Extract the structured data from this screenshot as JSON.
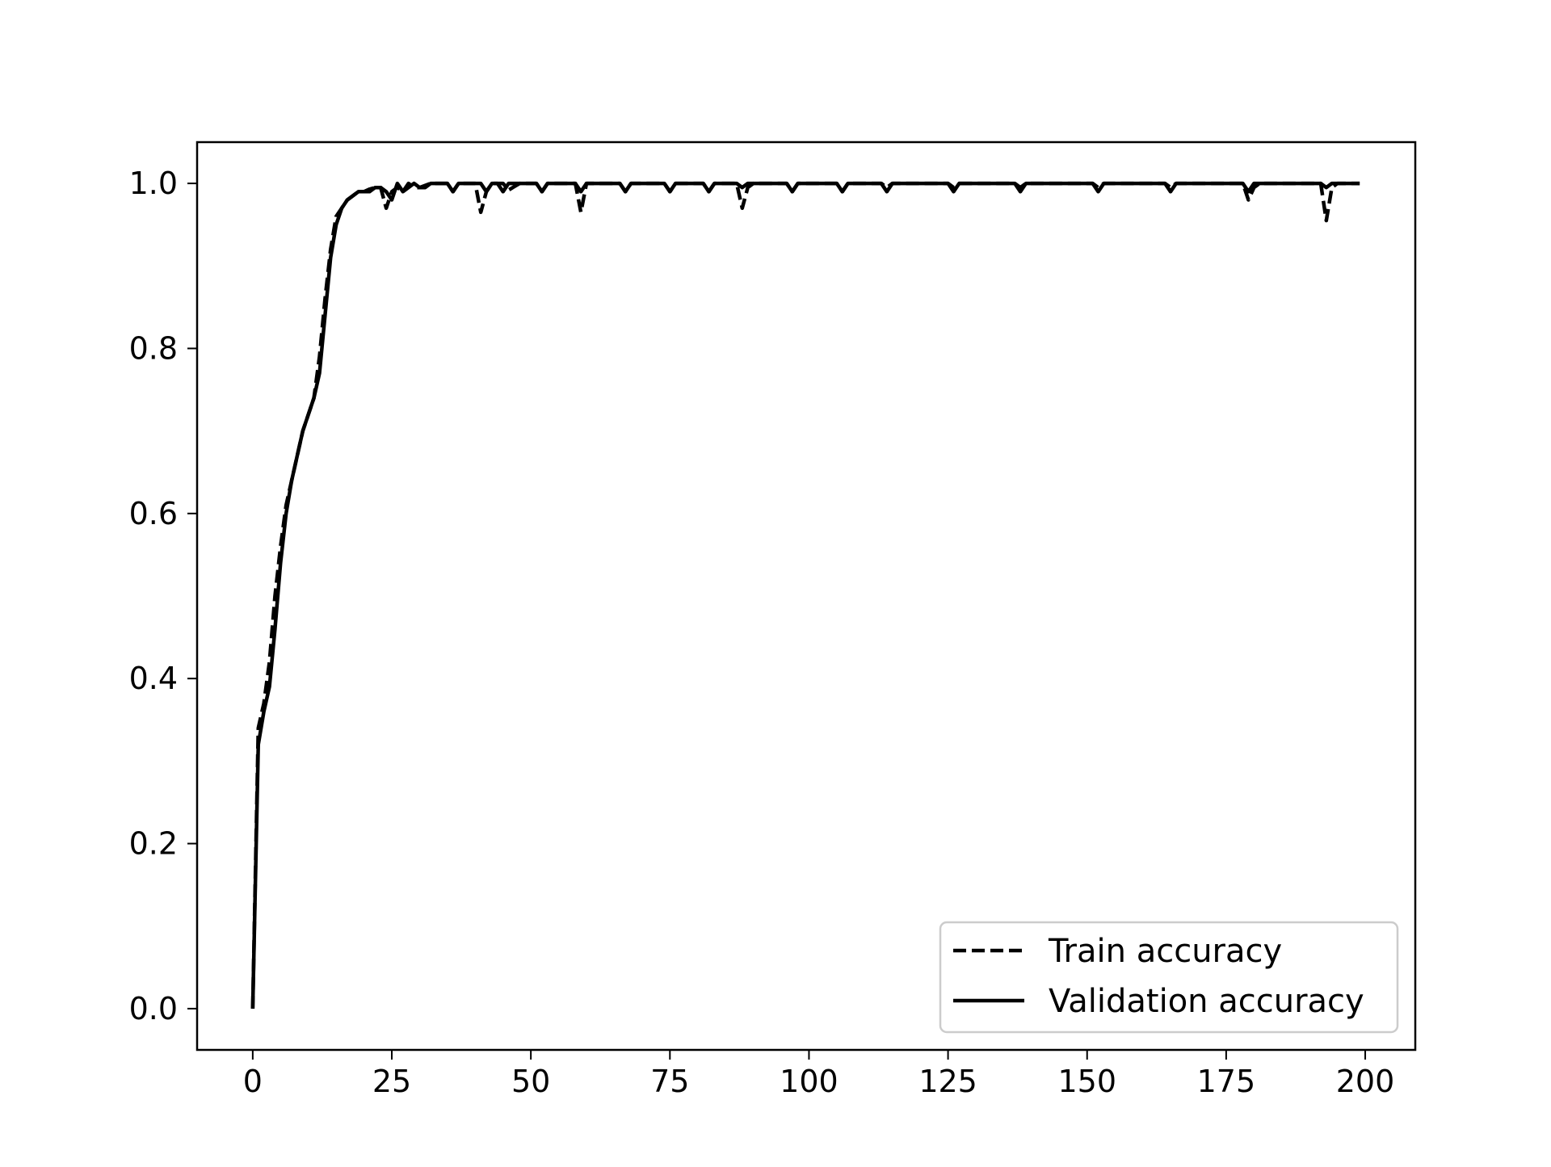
{
  "chart_data": {
    "type": "line",
    "title": "",
    "xlabel": "",
    "ylabel": "",
    "xlim": [
      -10,
      209
    ],
    "ylim": [
      -0.05,
      1.05
    ],
    "x_ticks": [
      0,
      25,
      50,
      75,
      100,
      125,
      150,
      175,
      200
    ],
    "x_tick_labels": [
      "0",
      "25",
      "50",
      "75",
      "100",
      "125",
      "150",
      "175",
      "200"
    ],
    "y_ticks": [
      0.0,
      0.2,
      0.4,
      0.6,
      0.8,
      1.0
    ],
    "y_tick_labels": [
      "0.0",
      "0.2",
      "0.4",
      "0.6",
      "0.8",
      "1.0"
    ],
    "grid": false,
    "legend_position": "lower-right",
    "series": [
      {
        "name": "Train accuracy",
        "style": "dashed",
        "color": "#000000",
        "points": [
          [
            0,
            0.0
          ],
          [
            1,
            0.34
          ],
          [
            2,
            0.37
          ],
          [
            3,
            0.42
          ],
          [
            4,
            0.5
          ],
          [
            5,
            0.56
          ],
          [
            6,
            0.61
          ],
          [
            7,
            0.64
          ],
          [
            8,
            0.67
          ],
          [
            9,
            0.7
          ],
          [
            10,
            0.72
          ],
          [
            11,
            0.74
          ],
          [
            12,
            0.79
          ],
          [
            13,
            0.86
          ],
          [
            14,
            0.92
          ],
          [
            15,
            0.96
          ],
          [
            16,
            0.97
          ],
          [
            17,
            0.98
          ],
          [
            18,
            0.985
          ],
          [
            19,
            0.99
          ],
          [
            20,
            0.99
          ],
          [
            21,
            0.993
          ],
          [
            22,
            0.995
          ],
          [
            23,
            0.995
          ],
          [
            24,
            0.97
          ],
          [
            25,
            0.99
          ],
          [
            26,
            0.995
          ],
          [
            27,
            0.99
          ],
          [
            28,
            1.0
          ],
          [
            29,
            0.995
          ],
          [
            30,
            0.995
          ],
          [
            32,
            1.0
          ],
          [
            35,
            1.0
          ],
          [
            36,
            0.99
          ],
          [
            37,
            1.0
          ],
          [
            40,
            1.0
          ],
          [
            41,
            0.965
          ],
          [
            42,
            0.99
          ],
          [
            43,
            1.0
          ],
          [
            45,
            1.0
          ],
          [
            46,
            0.992
          ],
          [
            48,
            1.0
          ],
          [
            51,
            1.0
          ],
          [
            52,
            0.99
          ],
          [
            53,
            1.0
          ],
          [
            58,
            1.0
          ],
          [
            59,
            0.965
          ],
          [
            60,
            1.0
          ],
          [
            66,
            1.0
          ],
          [
            67,
            0.99
          ],
          [
            68,
            1.0
          ],
          [
            74,
            1.0
          ],
          [
            75,
            0.99
          ],
          [
            76,
            1.0
          ],
          [
            81,
            1.0
          ],
          [
            82,
            0.99
          ],
          [
            83,
            1.0
          ],
          [
            87,
            1.0
          ],
          [
            88,
            0.97
          ],
          [
            89,
            0.995
          ],
          [
            90,
            1.0
          ],
          [
            96,
            1.0
          ],
          [
            97,
            0.99
          ],
          [
            98,
            1.0
          ],
          [
            105,
            1.0
          ],
          [
            106,
            0.99
          ],
          [
            107,
            1.0
          ],
          [
            113,
            1.0
          ],
          [
            114,
            0.995
          ],
          [
            115,
            1.0
          ],
          [
            125,
            1.0
          ],
          [
            126,
            0.995
          ],
          [
            127,
            1.0
          ],
          [
            137,
            1.0
          ],
          [
            138,
            0.995
          ],
          [
            139,
            1.0
          ],
          [
            151,
            1.0
          ],
          [
            152,
            0.995
          ],
          [
            153,
            1.0
          ],
          [
            164,
            1.0
          ],
          [
            165,
            0.995
          ],
          [
            166,
            1.0
          ],
          [
            178,
            1.0
          ],
          [
            179,
            0.98
          ],
          [
            180,
            0.995
          ],
          [
            181,
            1.0
          ],
          [
            192,
            1.0
          ],
          [
            193,
            0.955
          ],
          [
            194,
            0.995
          ],
          [
            195,
            1.0
          ],
          [
            199,
            1.0
          ]
        ]
      },
      {
        "name": "Validation accuracy",
        "style": "solid",
        "color": "#000000",
        "points": [
          [
            0,
            0.0
          ],
          [
            1,
            0.32
          ],
          [
            2,
            0.36
          ],
          [
            3,
            0.39
          ],
          [
            4,
            0.46
          ],
          [
            5,
            0.54
          ],
          [
            6,
            0.6
          ],
          [
            7,
            0.64
          ],
          [
            8,
            0.67
          ],
          [
            9,
            0.7
          ],
          [
            10,
            0.72
          ],
          [
            11,
            0.74
          ],
          [
            12,
            0.77
          ],
          [
            13,
            0.84
          ],
          [
            14,
            0.91
          ],
          [
            15,
            0.95
          ],
          [
            16,
            0.97
          ],
          [
            17,
            0.98
          ],
          [
            18,
            0.985
          ],
          [
            19,
            0.99
          ],
          [
            20,
            0.99
          ],
          [
            21,
            0.99
          ],
          [
            22,
            0.995
          ],
          [
            23,
            0.995
          ],
          [
            24,
            0.99
          ],
          [
            25,
            0.98
          ],
          [
            26,
            1.0
          ],
          [
            27,
            0.99
          ],
          [
            28,
            0.995
          ],
          [
            29,
            1.0
          ],
          [
            30,
            0.995
          ],
          [
            31,
            0.995
          ],
          [
            32,
            1.0
          ],
          [
            35,
            1.0
          ],
          [
            36,
            0.99
          ],
          [
            37,
            1.0
          ],
          [
            40,
            1.0
          ],
          [
            41,
            1.0
          ],
          [
            42,
            0.99
          ],
          [
            43,
            1.0
          ],
          [
            44,
            1.0
          ],
          [
            45,
            0.99
          ],
          [
            46,
            1.0
          ],
          [
            51,
            1.0
          ],
          [
            52,
            0.99
          ],
          [
            53,
            1.0
          ],
          [
            58,
            1.0
          ],
          [
            59,
            0.99
          ],
          [
            60,
            1.0
          ],
          [
            66,
            1.0
          ],
          [
            67,
            0.99
          ],
          [
            68,
            1.0
          ],
          [
            74,
            1.0
          ],
          [
            75,
            0.99
          ],
          [
            76,
            1.0
          ],
          [
            81,
            1.0
          ],
          [
            82,
            0.99
          ],
          [
            83,
            1.0
          ],
          [
            87,
            1.0
          ],
          [
            88,
            0.995
          ],
          [
            89,
            1.0
          ],
          [
            96,
            1.0
          ],
          [
            97,
            0.99
          ],
          [
            98,
            1.0
          ],
          [
            105,
            1.0
          ],
          [
            106,
            0.99
          ],
          [
            107,
            1.0
          ],
          [
            113,
            1.0
          ],
          [
            114,
            0.99
          ],
          [
            115,
            1.0
          ],
          [
            125,
            1.0
          ],
          [
            126,
            0.99
          ],
          [
            127,
            1.0
          ],
          [
            137,
            1.0
          ],
          [
            138,
            0.99
          ],
          [
            139,
            1.0
          ],
          [
            151,
            1.0
          ],
          [
            152,
            0.99
          ],
          [
            153,
            1.0
          ],
          [
            164,
            1.0
          ],
          [
            165,
            0.99
          ],
          [
            166,
            1.0
          ],
          [
            178,
            1.0
          ],
          [
            179,
            0.99
          ],
          [
            180,
            1.0
          ],
          [
            192,
            1.0
          ],
          [
            193,
            0.995
          ],
          [
            194,
            1.0
          ],
          [
            199,
            1.0
          ]
        ]
      }
    ]
  }
}
